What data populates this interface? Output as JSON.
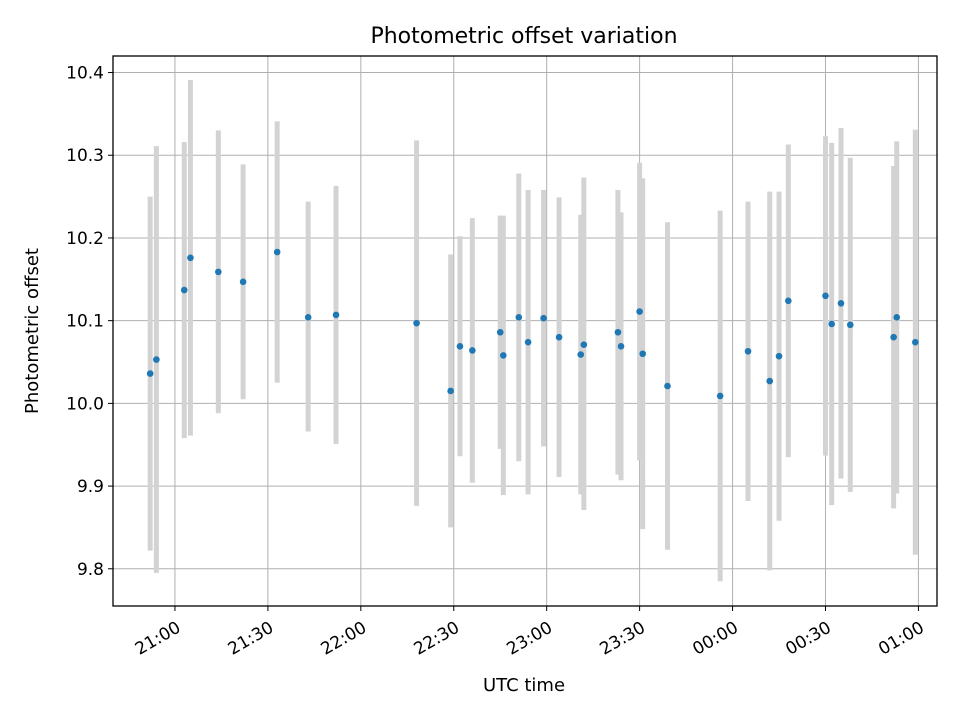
{
  "chart_data": {
    "type": "scatter",
    "title": "Photometric offset variation",
    "xlabel": "UTC time",
    "ylabel": "Photometric offset",
    "x_unit": "UTC time of day (clock continues past midnight)",
    "xlim": [
      "20:40",
      "01:06"
    ],
    "ylim": [
      9.755,
      10.42
    ],
    "x_ticks": [
      "21:00",
      "21:30",
      "22:00",
      "22:30",
      "23:00",
      "23:30",
      "00:00",
      "00:30",
      "01:00"
    ],
    "y_ticks": [
      "9.8",
      "9.9",
      "10.0",
      "10.1",
      "10.2",
      "10.3",
      "10.4"
    ],
    "grid": true,
    "point_color": "#1f77b4",
    "errorbar_color": "#d3d3d3",
    "series": [
      {
        "points": [
          {
            "x": "20:52",
            "y": 10.036,
            "lo": 9.822,
            "hi": 10.25
          },
          {
            "x": "20:54",
            "y": 10.053,
            "lo": 9.795,
            "hi": 10.311
          },
          {
            "x": "21:03",
            "y": 10.137,
            "lo": 9.958,
            "hi": 10.316
          },
          {
            "x": "21:05",
            "y": 10.176,
            "lo": 9.961,
            "hi": 10.391
          },
          {
            "x": "21:14",
            "y": 10.159,
            "lo": 9.988,
            "hi": 10.33
          },
          {
            "x": "21:22",
            "y": 10.147,
            "lo": 10.005,
            "hi": 10.289
          },
          {
            "x": "21:33",
            "y": 10.183,
            "lo": 10.025,
            "hi": 10.341
          },
          {
            "x": "21:43",
            "y": 10.104,
            "lo": 9.966,
            "hi": 10.244
          },
          {
            "x": "21:52",
            "y": 10.107,
            "lo": 9.951,
            "hi": 10.263
          },
          {
            "x": "22:18",
            "y": 10.097,
            "lo": 9.876,
            "hi": 10.318
          },
          {
            "x": "22:29",
            "y": 10.015,
            "lo": 9.85,
            "hi": 10.18
          },
          {
            "x": "22:32",
            "y": 10.069,
            "lo": 9.936,
            "hi": 10.202
          },
          {
            "x": "22:36",
            "y": 10.064,
            "lo": 9.904,
            "hi": 10.224
          },
          {
            "x": "22:45",
            "y": 10.086,
            "lo": 9.945,
            "hi": 10.227
          },
          {
            "x": "22:46",
            "y": 10.058,
            "lo": 9.889,
            "hi": 10.227
          },
          {
            "x": "22:51",
            "y": 10.104,
            "lo": 9.93,
            "hi": 10.278
          },
          {
            "x": "22:54",
            "y": 10.074,
            "lo": 9.89,
            "hi": 10.258
          },
          {
            "x": "22:59",
            "y": 10.103,
            "lo": 9.948,
            "hi": 10.258
          },
          {
            "x": "23:04",
            "y": 10.08,
            "lo": 9.911,
            "hi": 10.249
          },
          {
            "x": "23:11",
            "y": 10.059,
            "lo": 9.89,
            "hi": 10.228
          },
          {
            "x": "23:12",
            "y": 10.071,
            "lo": 9.871,
            "hi": 10.273
          },
          {
            "x": "23:23",
            "y": 10.086,
            "lo": 9.914,
            "hi": 10.258
          },
          {
            "x": "23:24",
            "y": 10.069,
            "lo": 9.907,
            "hi": 10.231
          },
          {
            "x": "23:30",
            "y": 10.111,
            "lo": 9.931,
            "hi": 10.291
          },
          {
            "x": "23:31",
            "y": 10.06,
            "lo": 9.848,
            "hi": 10.272
          },
          {
            "x": "23:39",
            "y": 10.021,
            "lo": 9.823,
            "hi": 10.219
          },
          {
            "x": "23:56",
            "y": 10.009,
            "lo": 9.785,
            "hi": 10.233
          },
          {
            "x": "00:05",
            "y": 10.063,
            "lo": 9.882,
            "hi": 10.244
          },
          {
            "x": "00:12",
            "y": 10.027,
            "lo": 9.798,
            "hi": 10.256
          },
          {
            "x": "00:15",
            "y": 10.057,
            "lo": 9.858,
            "hi": 10.256
          },
          {
            "x": "00:18",
            "y": 10.124,
            "lo": 9.935,
            "hi": 10.313
          },
          {
            "x": "00:30",
            "y": 10.13,
            "lo": 9.937,
            "hi": 10.323
          },
          {
            "x": "00:32",
            "y": 10.096,
            "lo": 9.877,
            "hi": 10.315
          },
          {
            "x": "00:35",
            "y": 10.121,
            "lo": 9.909,
            "hi": 10.333
          },
          {
            "x": "00:38",
            "y": 10.095,
            "lo": 9.893,
            "hi": 10.297
          },
          {
            "x": "00:52",
            "y": 10.08,
            "lo": 9.873,
            "hi": 10.287
          },
          {
            "x": "00:53",
            "y": 10.104,
            "lo": 9.891,
            "hi": 10.317
          },
          {
            "x": "00:59",
            "y": 10.074,
            "lo": 9.817,
            "hi": 10.331
          }
        ]
      }
    ]
  }
}
